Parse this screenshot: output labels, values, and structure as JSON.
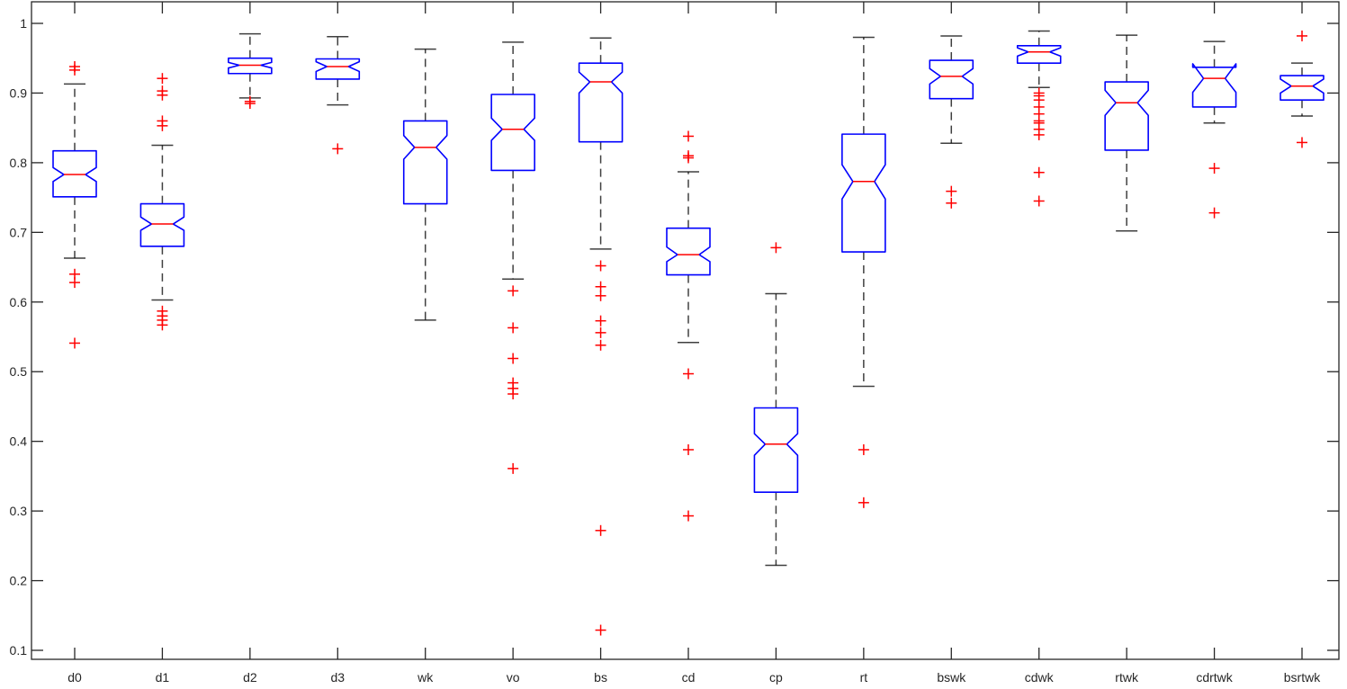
{
  "chart_data": {
    "type": "boxplot",
    "notched": true,
    "title": "",
    "xlabel": "",
    "ylabel": "",
    "ylim": [
      0.09,
      1.035
    ],
    "yticks": [
      0.1,
      0.2,
      0.3,
      0.4,
      0.5,
      0.6,
      0.7,
      0.8,
      0.9,
      1
    ],
    "ytick_labels": [
      "0.1",
      "0.2",
      "0.3",
      "0.4",
      "0.5",
      "0.6",
      "0.7",
      "0.8",
      "0.9",
      "1"
    ],
    "grid": false,
    "legend": null,
    "categories": [
      "d0",
      "d1",
      "d2",
      "d3",
      "wk",
      "vo",
      "bs",
      "cd",
      "cp",
      "rt",
      "bswk",
      "cdwk",
      "rtwk",
      "cdrtwk",
      "bsrtwk"
    ],
    "colors": {
      "box": "#0000ff",
      "median": "#ff0000",
      "whisker": "#000000",
      "outlier": "#ff0000",
      "axis": "#262626"
    },
    "boxes": [
      {
        "name": "d0",
        "whisker_low": 0.663,
        "q1": 0.751,
        "median": 0.783,
        "q3": 0.817,
        "whisker_high": 0.913,
        "notch_low": 0.773,
        "notch_high": 0.793,
        "outliers": [
          0.938,
          0.933,
          0.64,
          0.628,
          0.541
        ]
      },
      {
        "name": "d1",
        "whisker_low": 0.603,
        "q1": 0.68,
        "median": 0.712,
        "q3": 0.741,
        "whisker_high": 0.825,
        "notch_low": 0.703,
        "notch_high": 0.722,
        "outliers": [
          0.921,
          0.903,
          0.897,
          0.86,
          0.853,
          0.587,
          0.58,
          0.574,
          0.567
        ]
      },
      {
        "name": "d2",
        "whisker_low": 0.893,
        "q1": 0.928,
        "median": 0.94,
        "q3": 0.95,
        "whisker_high": 0.985,
        "notch_low": 0.936,
        "notch_high": 0.944,
        "outliers": [
          0.888,
          0.885
        ]
      },
      {
        "name": "d3",
        "whisker_low": 0.883,
        "q1": 0.92,
        "median": 0.938,
        "q3": 0.949,
        "whisker_high": 0.981,
        "notch_low": 0.931,
        "notch_high": 0.945,
        "outliers": [
          0.82
        ]
      },
      {
        "name": "wk",
        "whisker_low": 0.574,
        "q1": 0.741,
        "median": 0.822,
        "q3": 0.86,
        "whisker_high": 0.963,
        "notch_low": 0.805,
        "notch_high": 0.839,
        "outliers": []
      },
      {
        "name": "vo",
        "whisker_low": 0.633,
        "q1": 0.789,
        "median": 0.848,
        "q3": 0.898,
        "whisker_high": 0.973,
        "notch_low": 0.832,
        "notch_high": 0.864,
        "outliers": [
          0.616,
          0.563,
          0.519,
          0.484,
          0.476,
          0.468,
          0.361
        ]
      },
      {
        "name": "bs",
        "whisker_low": 0.676,
        "q1": 0.83,
        "median": 0.916,
        "q3": 0.943,
        "whisker_high": 0.979,
        "notch_low": 0.9,
        "notch_high": 0.93,
        "outliers": [
          0.652,
          0.622,
          0.609,
          0.573,
          0.556,
          0.538,
          0.272,
          0.129
        ]
      },
      {
        "name": "cd",
        "whisker_low": 0.542,
        "q1": 0.639,
        "median": 0.668,
        "q3": 0.706,
        "whisker_high": 0.787,
        "notch_low": 0.658,
        "notch_high": 0.679,
        "outliers": [
          0.838,
          0.81,
          0.807,
          0.497,
          0.388,
          0.293
        ]
      },
      {
        "name": "cp",
        "whisker_low": 0.222,
        "q1": 0.327,
        "median": 0.396,
        "q3": 0.448,
        "whisker_high": 0.612,
        "notch_low": 0.38,
        "notch_high": 0.411,
        "outliers": [
          0.678
        ]
      },
      {
        "name": "rt",
        "whisker_low": 0.479,
        "q1": 0.672,
        "median": 0.773,
        "q3": 0.841,
        "whisker_high": 0.98,
        "notch_low": 0.748,
        "notch_high": 0.797,
        "outliers": [
          0.388,
          0.312
        ]
      },
      {
        "name": "bswk",
        "whisker_low": 0.828,
        "q1": 0.892,
        "median": 0.924,
        "q3": 0.947,
        "whisker_high": 0.982,
        "notch_low": 0.913,
        "notch_high": 0.935,
        "outliers": [
          0.759,
          0.742
        ]
      },
      {
        "name": "cdwk",
        "whisker_low": 0.908,
        "q1": 0.943,
        "median": 0.959,
        "q3": 0.968,
        "whisker_high": 0.989,
        "notch_low": 0.953,
        "notch_high": 0.965,
        "outliers": [
          0.9,
          0.896,
          0.89,
          0.88,
          0.87,
          0.86,
          0.857,
          0.848,
          0.84,
          0.786,
          0.745
        ]
      },
      {
        "name": "rtwk",
        "whisker_low": 0.702,
        "q1": 0.818,
        "median": 0.886,
        "q3": 0.916,
        "whisker_high": 0.983,
        "notch_low": 0.868,
        "notch_high": 0.904,
        "outliers": []
      },
      {
        "name": "cdrtwk",
        "whisker_low": 0.857,
        "q1": 0.88,
        "median": 0.921,
        "q3": 0.937,
        "whisker_high": 0.974,
        "notch_low": 0.901,
        "notch_high": 0.942,
        "outliers": [
          0.792,
          0.728
        ]
      },
      {
        "name": "bsrtwk",
        "whisker_low": 0.867,
        "q1": 0.89,
        "median": 0.91,
        "q3": 0.925,
        "whisker_high": 0.943,
        "notch_low": 0.9,
        "notch_high": 0.92,
        "outliers": [
          0.982,
          0.829
        ]
      }
    ]
  }
}
